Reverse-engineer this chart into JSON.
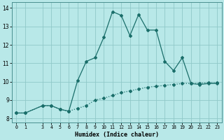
{
  "xlabel": "Humidex (Indice chaleur)",
  "bg_color": "#b8e8e8",
  "line_color": "#1a6e6a",
  "grid_color": "#90c8c8",
  "line1_x": [
    0,
    1,
    3,
    4,
    5,
    6,
    7,
    8,
    9,
    10,
    11,
    12,
    13,
    14,
    15,
    16,
    17,
    18,
    19,
    20,
    21,
    22,
    23
  ],
  "line1_y": [
    8.3,
    8.3,
    8.7,
    8.7,
    8.5,
    8.4,
    10.05,
    11.1,
    11.3,
    12.4,
    13.8,
    13.6,
    12.5,
    13.65,
    12.8,
    12.8,
    11.1,
    10.6,
    11.3,
    9.9,
    9.85,
    9.9,
    9.9
  ],
  "line2_x": [
    0,
    1,
    3,
    4,
    5,
    6,
    7,
    8,
    9,
    10,
    11,
    12,
    13,
    14,
    15,
    16,
    17,
    18,
    19,
    20,
    21,
    22,
    23
  ],
  "line2_y": [
    8.3,
    8.3,
    8.7,
    8.7,
    8.5,
    8.4,
    8.55,
    8.7,
    9.0,
    9.1,
    9.25,
    9.4,
    9.5,
    9.6,
    9.7,
    9.75,
    9.8,
    9.85,
    9.9,
    9.9,
    9.9,
    9.95,
    9.95
  ],
  "xlim": [
    -0.5,
    23.5
  ],
  "ylim": [
    7.8,
    14.3
  ],
  "xticks": [
    0,
    1,
    3,
    4,
    5,
    6,
    7,
    8,
    9,
    10,
    11,
    12,
    13,
    14,
    15,
    16,
    17,
    18,
    19,
    20,
    21,
    22,
    23
  ],
  "yticks": [
    8,
    9,
    10,
    11,
    12,
    13,
    14
  ],
  "markersize": 2.0,
  "linewidth": 0.9
}
